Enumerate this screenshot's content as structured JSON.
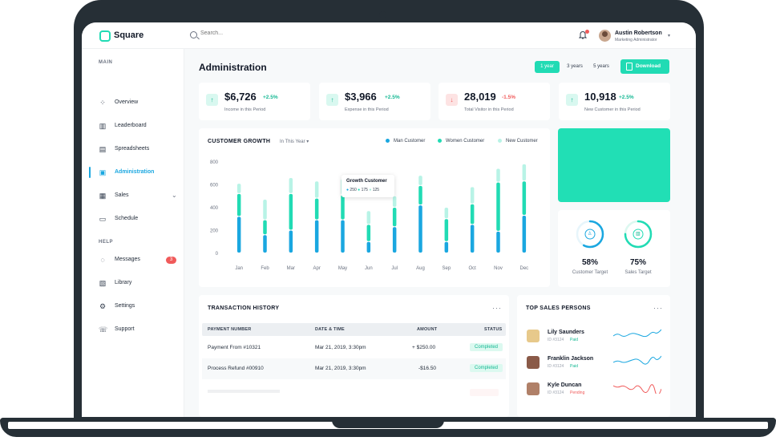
{
  "app": {
    "name": "Square"
  },
  "search": {
    "placeholder": "Search..."
  },
  "user": {
    "name": "Austin Robertson",
    "role": "Marketing Administrator"
  },
  "sidebar": {
    "main_label": "MAIN",
    "help_label": "HELP",
    "main_items": [
      {
        "label": "Overview",
        "icon": "overview-icon",
        "active": false
      },
      {
        "label": "Leaderboard",
        "icon": "leaderboard-icon",
        "active": false
      },
      {
        "label": "Spreadsheets",
        "icon": "spreadsheet-icon",
        "active": false
      },
      {
        "label": "Administration",
        "icon": "administration-icon",
        "active": true
      },
      {
        "label": "Sales",
        "icon": "sales-icon",
        "active": false
      },
      {
        "label": "Schedule",
        "icon": "calendar-icon",
        "active": false
      }
    ],
    "help_items": [
      {
        "label": "Messages",
        "icon": "message-icon",
        "badge": "3"
      },
      {
        "label": "Library",
        "icon": "library-icon"
      },
      {
        "label": "Settings",
        "icon": "gear-icon"
      },
      {
        "label": "Support",
        "icon": "phone-icon"
      }
    ]
  },
  "page": {
    "title": "Administration",
    "periods": [
      "1 year",
      "3 years",
      "5 years"
    ],
    "selected_period": "1 year",
    "download_label": "Download"
  },
  "stats": [
    {
      "value": "$6,726",
      "change": "+2.5%",
      "label": "Income in this Period",
      "trend": "up"
    },
    {
      "value": "$3,966",
      "change": "+2.5%",
      "label": "Expense in this Period",
      "trend": "up"
    },
    {
      "value": "28,019",
      "change": "-1.5%",
      "label": "Total Visitor in this Period",
      "trend": "down"
    },
    {
      "value": "10,918",
      "change": "+2.5%",
      "label": "New Customer in this Period",
      "trend": "up"
    }
  ],
  "growth": {
    "title": "CUSTOMER GROWTH",
    "filter": "In This Year",
    "tooltip": {
      "title": "Growth Customer",
      "values": [
        "250",
        "175",
        "125"
      ]
    }
  },
  "chart_data": {
    "type": "bar",
    "stacked": true,
    "categories": [
      "Jan",
      "Feb",
      "Mar",
      "Apr",
      "May",
      "Jun",
      "Jul",
      "Aug",
      "Sep",
      "Oct",
      "Nov",
      "Dec"
    ],
    "series": [
      {
        "name": "Man Customer",
        "color": "#1aa7e0",
        "values": [
          320,
          160,
          200,
          290,
          290,
          100,
          230,
          420,
          100,
          250,
          190,
          330
        ]
      },
      {
        "name": "Women Customer",
        "color": "#21dbb4",
        "values": [
          200,
          130,
          320,
          190,
          220,
          150,
          170,
          170,
          200,
          180,
          430,
          300
        ]
      },
      {
        "name": "New Customer",
        "color": "#b8f3e6",
        "values": [
          90,
          180,
          140,
          150,
          140,
          120,
          100,
          90,
          100,
          150,
          120,
          150
        ]
      }
    ],
    "ylim": [
      0,
      800
    ],
    "yticks": [
      "800",
      "600",
      "400",
      "200",
      "0"
    ],
    "legend": "top-right"
  },
  "targets": [
    {
      "value": "58%",
      "label": "Customer Target",
      "percent": 58,
      "icon": "user-icon"
    },
    {
      "value": "75%",
      "label": "Sales Target",
      "percent": 75,
      "icon": "bag-icon"
    }
  ],
  "transactions": {
    "title": "TRANSACTION HISTORY",
    "columns": [
      "PAYMENT NUMBER",
      "DATE & TIME",
      "AMOUNT",
      "STATUS"
    ],
    "rows": [
      {
        "payment": "Payment From #10321",
        "date": "Mar 21, 2019, 3:30pm",
        "amount": "+ $250.00",
        "status": "Completed"
      },
      {
        "payment": "Process Refund #00910",
        "date": "Mar 21, 2019, 3:30pm",
        "amount": "-$16.50",
        "status": "Completed"
      }
    ]
  },
  "sales_persons": {
    "title": "TOP SALES PERSONS",
    "people": [
      {
        "name": "Lily Saunders",
        "id": "ID #3124",
        "status": "Paid",
        "trend_color": "#1aa7e0"
      },
      {
        "name": "Franklin Jackson",
        "id": "ID #3124",
        "status": "Paid",
        "trend_color": "#1aa7e0"
      },
      {
        "name": "Kyle Duncan",
        "id": "ID #3124",
        "status": "Pending",
        "trend_color": "#f05a5a"
      }
    ]
  }
}
